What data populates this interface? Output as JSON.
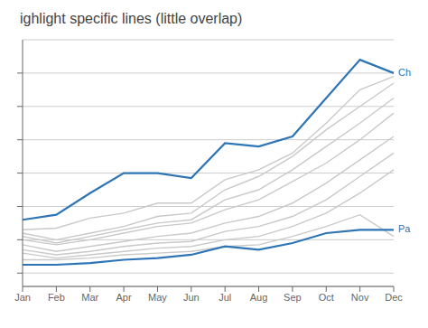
{
  "chart_data": {
    "type": "line",
    "title": "ighlight specific lines (little overlap)",
    "categories": [
      "Jan",
      "Feb",
      "Mar",
      "Apr",
      "May",
      "Jun",
      "Jul",
      "Aug",
      "Sep",
      "Oct",
      "Nov",
      "Dec"
    ],
    "series": [
      {
        "color": "#c9c9c9",
        "values": [
          26,
          27,
          33,
          36,
          42,
          42,
          56,
          62,
          72,
          90,
          110,
          118
        ]
      },
      {
        "color": "#c9c9c9",
        "values": [
          24,
          20,
          24,
          28,
          34,
          36,
          50,
          58,
          70,
          86,
          100,
          114
        ]
      },
      {
        "color": "#c9c9c9",
        "values": [
          22,
          18,
          22,
          26,
          30,
          32,
          44,
          50,
          62,
          76,
          90,
          105
        ]
      },
      {
        "color": "#c9c9c9",
        "values": [
          20,
          17,
          20,
          24,
          28,
          30,
          38,
          44,
          55,
          66,
          80,
          96
        ]
      },
      {
        "color": "#c9c9c9",
        "values": [
          17,
          13,
          16,
          19,
          22,
          24,
          30,
          34,
          42,
          54,
          68,
          82
        ]
      },
      {
        "color": "#c9c9c9",
        "values": [
          14,
          11,
          13,
          16,
          18,
          19,
          25,
          28,
          34,
          44,
          58,
          72
        ]
      },
      {
        "color": "#c9c9c9",
        "values": [
          12,
          9,
          11,
          13,
          15,
          16,
          20,
          22,
          28,
          36,
          48,
          62
        ]
      },
      {
        "color": "#c9c9c9",
        "values": [
          8,
          8,
          9,
          11,
          12,
          13,
          16,
          17,
          22,
          28,
          35,
          22
        ]
      },
      {
        "name": "Ch",
        "color": "#2e75b6",
        "values": [
          32,
          35,
          48,
          60,
          60,
          57,
          78,
          76,
          82,
          105,
          128,
          120
        ]
      },
      {
        "name": "Pa",
        "color": "#2e75b6",
        "values": [
          5,
          5,
          6,
          8,
          9,
          11,
          16,
          14,
          18,
          24,
          26,
          26
        ]
      }
    ],
    "ylim": [
      -8,
      140
    ],
    "yticks": [
      0,
      20,
      40,
      60,
      80,
      100,
      120
    ],
    "grid": true,
    "tick_labels": "x"
  }
}
